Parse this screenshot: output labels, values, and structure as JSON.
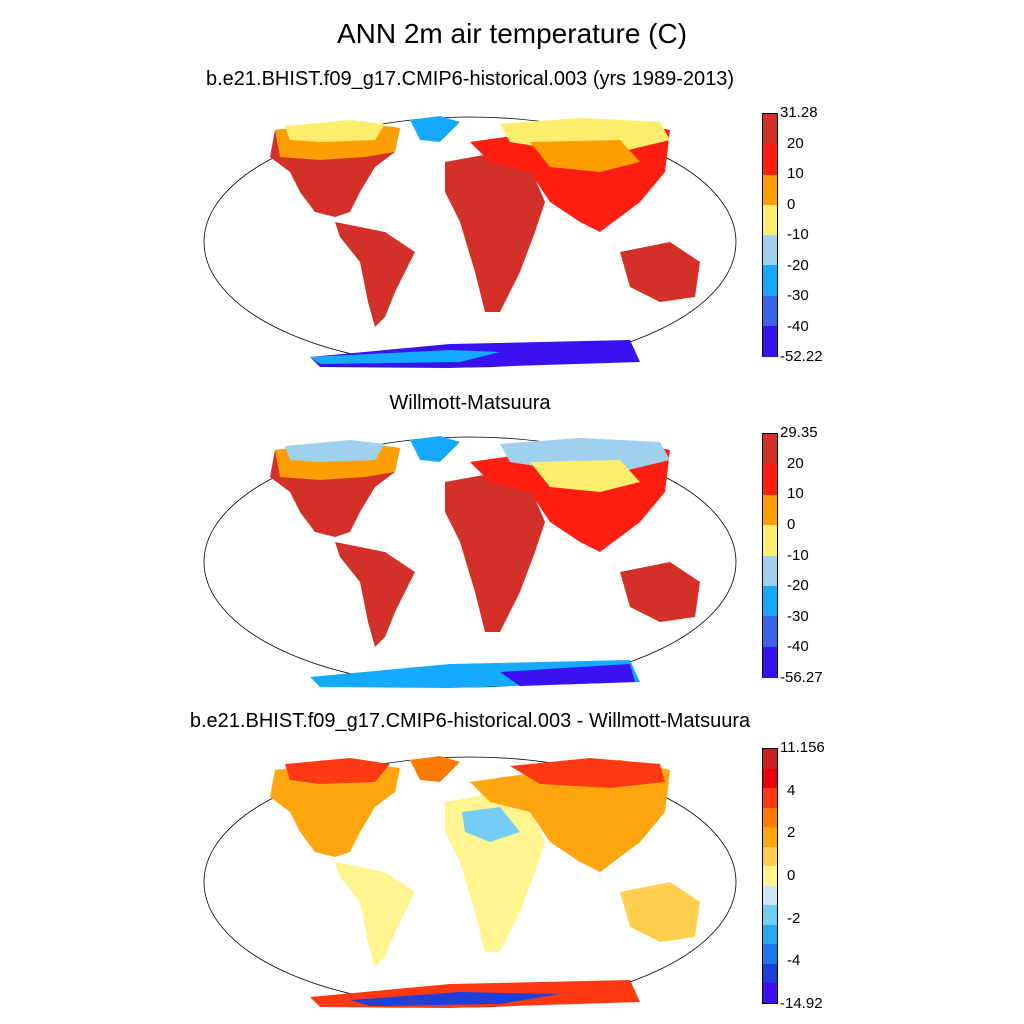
{
  "title": "ANN 2m air temperature (C)",
  "panels": [
    {
      "id": "model",
      "title": "b.e21.BHIST.f09_g17.CMIP6-historical.003 (yrs 1989-2013)",
      "colorbar": {
        "labels": [
          "31.28",
          "20",
          "10",
          "0",
          "-10",
          "-20",
          "-30",
          "-40",
          "-52.22"
        ],
        "colors": [
          "#d3302a",
          "#ff1e10",
          "#ff9e00",
          "#ffee6e",
          "#9fd0ee",
          "#14aaff",
          "#3b63e6",
          "#3a12f2"
        ]
      }
    },
    {
      "id": "obs",
      "title": "Willmott-Matsuura",
      "colorbar": {
        "labels": [
          "29.35",
          "20",
          "10",
          "0",
          "-10",
          "-20",
          "-30",
          "-40",
          "-56.27"
        ],
        "colors": [
          "#d3302a",
          "#ff1e10",
          "#ff9e00",
          "#ffee6e",
          "#9fd0ee",
          "#14aaff",
          "#3b63e6",
          "#3a12f2"
        ]
      }
    },
    {
      "id": "diff",
      "title": "b.e21.BHIST.f09_g17.CMIP6-historical.003 - Willmott-Matsuura",
      "colorbar": {
        "labels": [
          "11.156",
          "",
          "4",
          "",
          "2",
          "",
          "0",
          "",
          "-2",
          "",
          "-4",
          "",
          "-14.92"
        ],
        "colors": [
          "#c72021",
          "#e8000c",
          "#ff3a12",
          "#ff7a00",
          "#ffa50e",
          "#ffd04e",
          "#fff48e",
          "#cde6f4",
          "#73cdf4",
          "#2aa8ef",
          "#1f78e6",
          "#1e40d8",
          "#3d10f0"
        ]
      }
    }
  ]
}
